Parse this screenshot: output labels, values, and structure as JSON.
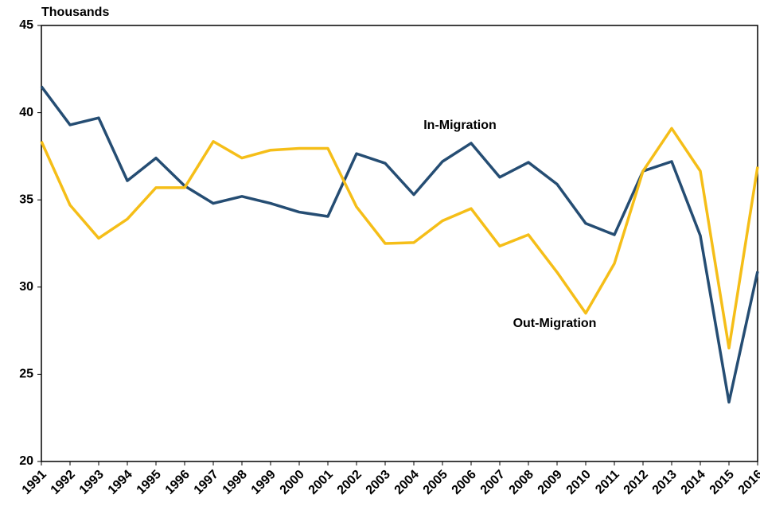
{
  "chart_data": {
    "type": "line",
    "y_axis_label": "Thousands",
    "categories": [
      "1991",
      "1992",
      "1993",
      "1994",
      "1995",
      "1996",
      "1997",
      "1998",
      "1999",
      "2000",
      "2001",
      "2002",
      "2003",
      "2004",
      "2005",
      "2006",
      "2007",
      "2008",
      "2009",
      "2010",
      "2011",
      "2012",
      "2013",
      "2014",
      "2015",
      "2016"
    ],
    "series": [
      {
        "name": "In-Migration",
        "color": "#254d73",
        "values": [
          41.5,
          39.3,
          39.7,
          36.1,
          37.4,
          35.8,
          34.8,
          35.2,
          34.8,
          34.3,
          34.05,
          37.65,
          37.1,
          35.3,
          37.2,
          38.25,
          36.3,
          37.15,
          35.9,
          33.65,
          33.0,
          36.65,
          37.2,
          32.95,
          23.4,
          30.9
        ]
      },
      {
        "name": "Out-Migration",
        "color": "#f5be18",
        "values": [
          38.35,
          34.7,
          32.8,
          33.9,
          35.7,
          35.7,
          38.35,
          37.4,
          37.85,
          37.95,
          37.95,
          34.6,
          32.5,
          32.55,
          33.8,
          34.5,
          32.35,
          33.0,
          30.85,
          28.5,
          31.35,
          36.65,
          39.1,
          36.65,
          26.5,
          36.9
        ]
      }
    ],
    "ylim": [
      20,
      45
    ],
    "yticks": [
      20,
      25,
      30,
      35,
      40,
      45
    ],
    "grid": false
  }
}
